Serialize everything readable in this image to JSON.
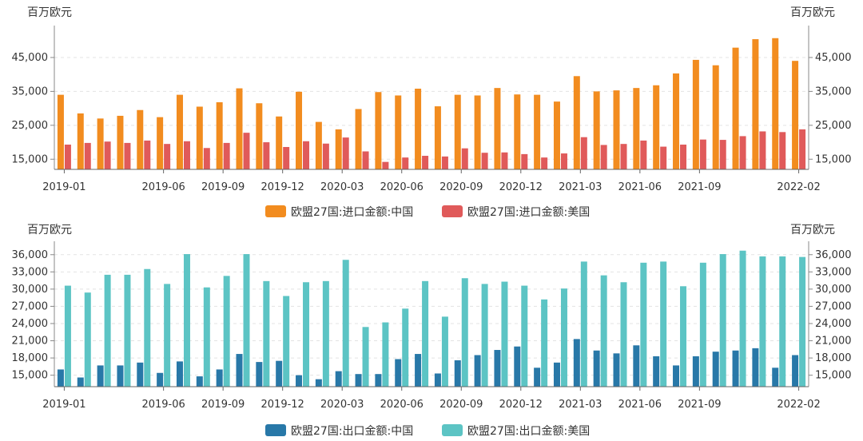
{
  "chart_data": [
    {
      "type": "bar",
      "unit_left": "百万欧元",
      "unit_right": "百万欧元",
      "x_tick_labels": [
        "2019-01",
        "2019-06",
        "2019-09",
        "2019-12",
        "2020-03",
        "2020-06",
        "2020-09",
        "2020-12",
        "2021-03",
        "2021-06",
        "2021-09",
        "2022-02"
      ],
      "x_tick_index": [
        0,
        5,
        8,
        11,
        14,
        17,
        20,
        23,
        26,
        29,
        32,
        37
      ],
      "y_tick_labels": [
        "15,000",
        "25,000",
        "35,000",
        "45,000"
      ],
      "y_ticks": [
        15000,
        25000,
        35000,
        45000
      ],
      "ylim": [
        12000,
        53000
      ],
      "legend": [
        "欧盟27国:进口金额:中国",
        "欧盟27国:进口金额:美国"
      ],
      "series": [
        {
          "name": "欧盟27国:进口金额:中国",
          "color": "#f28c1f",
          "values": [
            34000,
            28500,
            27000,
            27800,
            29500,
            27400,
            34000,
            30500,
            31800,
            35900,
            31500,
            27600,
            34900,
            26000,
            23800,
            29800,
            34800,
            33800,
            35800,
            30600,
            34000,
            33800,
            36000,
            34100,
            34000,
            32000,
            39500,
            35000,
            35300,
            36000,
            36800,
            40300,
            44300,
            42700,
            47900,
            50400,
            50700,
            44000
          ]
        },
        {
          "name": "欧盟27国:进口金额:美国",
          "color": "#e05a5a",
          "values": [
            19300,
            19800,
            20200,
            19800,
            20500,
            19500,
            20300,
            18300,
            19800,
            22800,
            20000,
            18600,
            20300,
            19600,
            21400,
            17300,
            14200,
            15500,
            16000,
            15800,
            18200,
            16900,
            17000,
            16500,
            15500,
            16700,
            21500,
            19200,
            19500,
            20500,
            18700,
            19300,
            20800,
            20700,
            21800,
            23200,
            23000,
            23800
          ]
        }
      ],
      "categories": [
        "2019-01",
        "2019-02",
        "2019-03",
        "2019-04",
        "2019-05",
        "2019-06",
        "2019-07",
        "2019-08",
        "2019-09",
        "2019-10",
        "2019-11",
        "2019-12",
        "2020-01",
        "2020-02",
        "2020-03",
        "2020-04",
        "2020-05",
        "2020-06",
        "2020-07",
        "2020-08",
        "2020-09",
        "2020-10",
        "2020-11",
        "2020-12",
        "2021-01",
        "2021-02",
        "2021-03",
        "2021-04",
        "2021-05",
        "2021-06",
        "2021-07",
        "2021-08",
        "2021-09",
        "2021-10",
        "2021-11",
        "2021-12",
        "2022-01",
        "2022-02"
      ]
    },
    {
      "type": "bar",
      "unit_left": "百万欧元",
      "unit_right": "百万欧元",
      "x_tick_labels": [
        "2019-01",
        "2019-06",
        "2019-09",
        "2019-12",
        "2020-03",
        "2020-06",
        "2020-09",
        "2020-12",
        "2021-03",
        "2021-06",
        "2021-09",
        "2022-02"
      ],
      "x_tick_index": [
        0,
        5,
        8,
        11,
        14,
        17,
        20,
        23,
        26,
        29,
        32,
        37
      ],
      "y_tick_labels": [
        "15,000",
        "18,000",
        "21,000",
        "24,000",
        "27,000",
        "30,000",
        "33,000",
        "36,000"
      ],
      "y_ticks": [
        15000,
        18000,
        21000,
        24000,
        27000,
        30000,
        33000,
        36000
      ],
      "ylim": [
        13000,
        37500
      ],
      "legend": [
        "欧盟27国:出口金额:中国",
        "欧盟27国:出口金额:美国"
      ],
      "series": [
        {
          "name": "欧盟27国:出口金额:中国",
          "color": "#2878a8",
          "values": [
            16000,
            14600,
            16700,
            16700,
            17200,
            15400,
            17400,
            14800,
            16000,
            18700,
            17300,
            17500,
            15000,
            14300,
            15700,
            15200,
            15200,
            17800,
            18700,
            15300,
            17600,
            18500,
            19400,
            20000,
            16300,
            17200,
            21300,
            19300,
            18800,
            20200,
            18300,
            16700,
            18300,
            19100,
            19300,
            19700,
            16300,
            18500
          ]
        },
        {
          "name": "欧盟27国:出口金额:美国",
          "color": "#5cc4c4",
          "values": [
            30600,
            29400,
            32500,
            32500,
            33500,
            30900,
            36100,
            30300,
            32300,
            36100,
            31400,
            28800,
            31200,
            31400,
            35100,
            23400,
            24200,
            26600,
            31400,
            25200,
            31900,
            30900,
            31300,
            30600,
            28200,
            30100,
            34800,
            32400,
            31200,
            34600,
            34800,
            30500,
            34600,
            36100,
            36700,
            35700,
            35700,
            35600
          ]
        }
      ],
      "categories": [
        "2019-01",
        "2019-02",
        "2019-03",
        "2019-04",
        "2019-05",
        "2019-06",
        "2019-07",
        "2019-08",
        "2019-09",
        "2019-10",
        "2019-11",
        "2019-12",
        "2020-01",
        "2020-02",
        "2020-03",
        "2020-04",
        "2020-05",
        "2020-06",
        "2020-07",
        "2020-08",
        "2020-09",
        "2020-10",
        "2020-11",
        "2020-12",
        "2021-01",
        "2021-02",
        "2021-03",
        "2021-04",
        "2021-05",
        "2021-06",
        "2021-07",
        "2021-08",
        "2021-09",
        "2021-10",
        "2021-11",
        "2021-12",
        "2022-01",
        "2022-02"
      ]
    }
  ]
}
